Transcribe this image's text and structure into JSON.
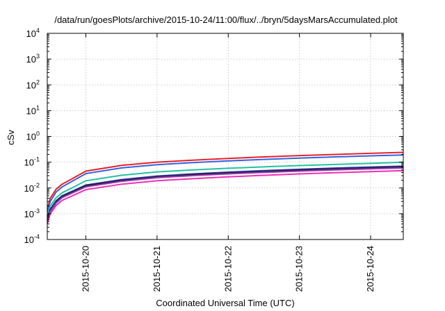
{
  "chart_data": {
    "type": "line",
    "title": "/data/run/goesPlots/archive/2015-10-24/11:00/flux/../bryn/5daysMarsAccumulated.plot",
    "xlabel": "Coordinated Universal Time (UTC)",
    "ylabel": "cSv",
    "y_scale": "log",
    "ylim": [
      0.0001,
      10000
    ],
    "y_ticks": [
      {
        "base": "10",
        "exp": "-4",
        "value": 0.0001
      },
      {
        "base": "10",
        "exp": "-3",
        "value": 0.001
      },
      {
        "base": "10",
        "exp": "-2",
        "value": 0.01
      },
      {
        "base": "10",
        "exp": "-1",
        "value": 0.1
      },
      {
        "base": "10",
        "exp": "0",
        "value": 1
      },
      {
        "base": "10",
        "exp": "1",
        "value": 10
      },
      {
        "base": "10",
        "exp": "2",
        "value": 100
      },
      {
        "base": "10",
        "exp": "3",
        "value": 1000
      },
      {
        "base": "10",
        "exp": "4",
        "value": 10000
      }
    ],
    "xlim": [
      "2015-10-19T11:00",
      "2015-10-24T11:00"
    ],
    "x_ticks": [
      "2015-10-20",
      "2015-10-21",
      "2015-10-22",
      "2015-10-23",
      "2015-10-24"
    ],
    "grid": true,
    "x": [
      "2015-10-19T11:00",
      "2015-10-19T12:00",
      "2015-10-19T14:00",
      "2015-10-19T16:00",
      "2015-10-19T20:00",
      "2015-10-20T00:00",
      "2015-10-20T12:00",
      "2015-10-21T00:00",
      "2015-10-21T12:00",
      "2015-10-22T00:00",
      "2015-10-22T12:00",
      "2015-10-23T00:00",
      "2015-10-23T12:00",
      "2015-10-24T00:00",
      "2015-10-24T11:00"
    ],
    "series": [
      {
        "color": "#e8202a",
        "values": [
          0.0015,
          0.004,
          0.009,
          0.014,
          0.025,
          0.045,
          0.075,
          0.1,
          0.12,
          0.14,
          0.16,
          0.18,
          0.2,
          0.22,
          0.24
        ]
      },
      {
        "color": "#2f63e0",
        "values": [
          0.0012,
          0.003,
          0.007,
          0.011,
          0.02,
          0.036,
          0.06,
          0.08,
          0.096,
          0.112,
          0.128,
          0.144,
          0.16,
          0.176,
          0.19
        ]
      },
      {
        "color": "#22c1a0",
        "values": [
          0.0008,
          0.002,
          0.0042,
          0.0065,
          0.011,
          0.019,
          0.031,
          0.042,
          0.05,
          0.058,
          0.066,
          0.074,
          0.082,
          0.09,
          0.1
        ]
      },
      {
        "color": "#2b2f9a",
        "values": [
          0.0006,
          0.0015,
          0.0032,
          0.005,
          0.008,
          0.013,
          0.021,
          0.029,
          0.035,
          0.041,
          0.047,
          0.053,
          0.059,
          0.065,
          0.07
        ]
      },
      {
        "color": "#1a1a1a",
        "values": [
          0.0005,
          0.0013,
          0.0028,
          0.0045,
          0.0072,
          0.012,
          0.019,
          0.026,
          0.032,
          0.037,
          0.042,
          0.048,
          0.053,
          0.058,
          0.063
        ]
      },
      {
        "color": "#9b3ab0",
        "values": [
          0.0005,
          0.0012,
          0.0026,
          0.0042,
          0.0068,
          0.011,
          0.018,
          0.025,
          0.03,
          0.035,
          0.04,
          0.045,
          0.05,
          0.055,
          0.06
        ]
      },
      {
        "color": "#ec2fb8",
        "values": [
          0.0004,
          0.001,
          0.0021,
          0.0033,
          0.0053,
          0.0086,
          0.014,
          0.019,
          0.023,
          0.027,
          0.031,
          0.035,
          0.039,
          0.043,
          0.047
        ]
      }
    ]
  }
}
